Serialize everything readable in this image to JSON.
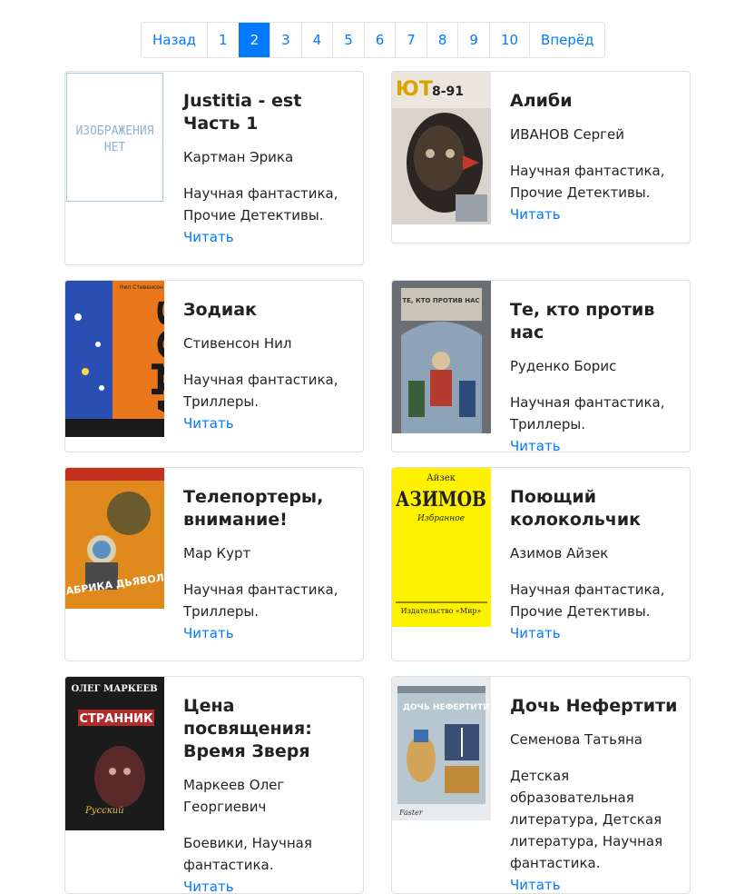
{
  "pagination": {
    "prev": "Назад",
    "pages": [
      "1",
      "2",
      "3",
      "4",
      "5",
      "6",
      "7",
      "8",
      "9",
      "10"
    ],
    "next": "Вперёд",
    "active_page": "2"
  },
  "no_image_text": "ИЗОБРАЖЕНИЯ НЕТ",
  "read_label": "Читать",
  "books": [
    {
      "title": "Justitia - est Часть 1",
      "author": "Картман Эрика",
      "genres": "Научная фантастика, Прочие Детективы."
    },
    {
      "title": "Алиби",
      "author": "ИВАНОВ Сергей",
      "genres": "Научная фантастика, Прочие Детективы.",
      "cover_text": "8-91"
    },
    {
      "title": "Зодиак",
      "author": "Стивенсон Нил",
      "genres": "Научная фантастика, Триллеры.",
      "cover_text": "ЗОДИАК",
      "cover_author": "Нил Стивенсон"
    },
    {
      "title": "Те, кто против нас",
      "author": "Руденко Борис",
      "genres": "Научная фантастика, Триллеры.",
      "cover_text": "ТЕ, КТО ПРОТИВ НАС"
    },
    {
      "title": "Телепортеры, внимание!",
      "author": "Мар Курт",
      "genres": "Научная фантастика, Триллеры.",
      "cover_text": "ФАБРИКА ДЬЯВОЛА"
    },
    {
      "title": "Поющий колокольчик",
      "author": "Азимов Айзек",
      "genres": "Научная фантастика, Прочие Детективы.",
      "cover_text": "АЗИМОВ",
      "cover_author": "Айзек",
      "cover_sub": "Избранное",
      "cover_publisher": "Издательство «Мир»"
    },
    {
      "title": "Цена посвящения: Время Зверя",
      "author": "Маркеев Олег Георгиевич",
      "genres": "Боевики, Научная фантастика.",
      "cover_text": "СТРАННИК",
      "cover_author": "ОЛЕГ МАРКЕЕВ"
    },
    {
      "title": "Дочь Нефертити",
      "author": "Семенова Татьяна",
      "genres": "Детская образовательная литература, Детская литература, Научная фантастика.",
      "cover_text": "ДОЧЬ НЕФЕРТИТИ"
    }
  ]
}
